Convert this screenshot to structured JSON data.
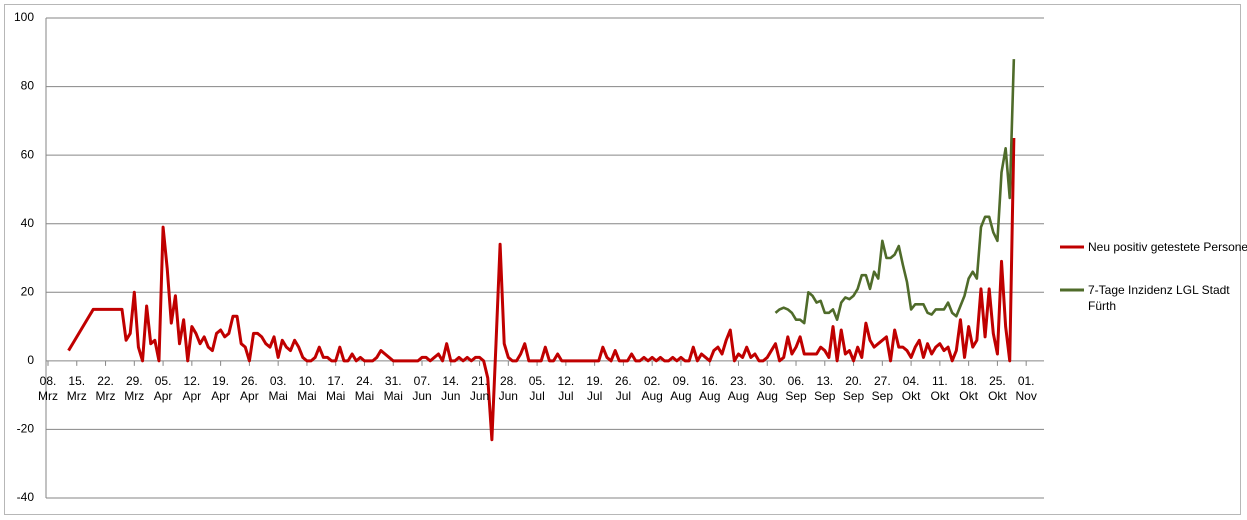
{
  "chart_data": {
    "type": "line",
    "categories": [
      "08. Mrz",
      null,
      null,
      null,
      null,
      null,
      null,
      "15. Mrz",
      null,
      null,
      null,
      null,
      null,
      null,
      "22. Mrz",
      null,
      null,
      null,
      null,
      null,
      null,
      "29. Mrz",
      null,
      null,
      null,
      null,
      null,
      null,
      "05. Apr",
      null,
      null,
      null,
      null,
      null,
      null,
      "12. Apr",
      null,
      null,
      null,
      null,
      null,
      null,
      "19. Apr",
      null,
      null,
      null,
      null,
      null,
      null,
      "26. Apr",
      null,
      null,
      null,
      null,
      null,
      null,
      "03. Mai",
      null,
      null,
      null,
      null,
      null,
      null,
      "10. Mai",
      null,
      null,
      null,
      null,
      null,
      null,
      "17. Mai",
      null,
      null,
      null,
      null,
      null,
      null,
      "24. Mai",
      null,
      null,
      null,
      null,
      null,
      null,
      "31. Mai",
      null,
      null,
      null,
      null,
      null,
      null,
      "07. Jun",
      null,
      null,
      null,
      null,
      null,
      null,
      "14. Jun",
      null,
      null,
      null,
      null,
      null,
      null,
      "21. Jun",
      null,
      null,
      null,
      null,
      null,
      null,
      "28. Jun",
      null,
      null,
      null,
      null,
      null,
      null,
      "05. Jul",
      null,
      null,
      null,
      null,
      null,
      null,
      "12. Jul",
      null,
      null,
      null,
      null,
      null,
      null,
      "19. Jul",
      null,
      null,
      null,
      null,
      null,
      null,
      "26. Jul",
      null,
      null,
      null,
      null,
      null,
      null,
      "02. Aug",
      null,
      null,
      null,
      null,
      null,
      null,
      "09. Aug",
      null,
      null,
      null,
      null,
      null,
      null,
      "16. Aug",
      null,
      null,
      null,
      null,
      null,
      null,
      "23. Aug",
      null,
      null,
      null,
      null,
      null,
      null,
      "30. Aug",
      null,
      null,
      null,
      null,
      null,
      null,
      "06. Sep",
      null,
      null,
      null,
      null,
      null,
      null,
      "13. Sep",
      null,
      null,
      null,
      null,
      null,
      null,
      "20. Sep",
      null,
      null,
      null,
      null,
      null,
      null,
      "27. Sep",
      null,
      null,
      null,
      null,
      null,
      null,
      "04. Okt",
      null,
      null,
      null,
      null,
      null,
      null,
      "11. Okt",
      null,
      null,
      null,
      null,
      null,
      null,
      "18. Okt",
      null,
      null,
      null,
      null,
      null,
      null,
      "25. Okt",
      null,
      null,
      null,
      null,
      null,
      null,
      "01. Nov"
    ],
    "series": [
      {
        "name": "Neu positiv getestete Personen",
        "color": "#c00000",
        "values": [
          null,
          null,
          null,
          null,
          null,
          3,
          5,
          7,
          9,
          11,
          13,
          15,
          15,
          15,
          15,
          15,
          15,
          15,
          15,
          6,
          8,
          20,
          4,
          0,
          16,
          5,
          6,
          0,
          39,
          27,
          11,
          19,
          5,
          12,
          0,
          10,
          8,
          5,
          7,
          4,
          3,
          8,
          9,
          7,
          8,
          13,
          13,
          5,
          4,
          0,
          8,
          8,
          7,
          5,
          4,
          7,
          1,
          6,
          4,
          3,
          6,
          4,
          1,
          0,
          0,
          1,
          4,
          1,
          1,
          0,
          0,
          4,
          0,
          0,
          2,
          0,
          1,
          0,
          0,
          0,
          1,
          3,
          2,
          1,
          0,
          0,
          0,
          0,
          0,
          0,
          0,
          1,
          1,
          0,
          1,
          2,
          0,
          5,
          0,
          0,
          1,
          0,
          1,
          0,
          1,
          1,
          0,
          -5,
          -23,
          5,
          34,
          5,
          1,
          0,
          0,
          2,
          5,
          0,
          0,
          0,
          0,
          4,
          0,
          0,
          2,
          0,
          0,
          0,
          0,
          0,
          0,
          0,
          0,
          0,
          0,
          4,
          1,
          0,
          3,
          0,
          0,
          0,
          2,
          0,
          0,
          1,
          0,
          1,
          0,
          1,
          0,
          0,
          1,
          0,
          1,
          0,
          0,
          4,
          0,
          2,
          1,
          0,
          3,
          4,
          2,
          6,
          9,
          0,
          2,
          1,
          4,
          1,
          2,
          0,
          0,
          1,
          3,
          5,
          0,
          1,
          7,
          2,
          4,
          7,
          2,
          2,
          2,
          2,
          4,
          3,
          1,
          10,
          0,
          9,
          2,
          3,
          0,
          4,
          1,
          11,
          6,
          4,
          5,
          6,
          7,
          0,
          9,
          4,
          4,
          3,
          1,
          4,
          6,
          1,
          5,
          2,
          4,
          5,
          3,
          4,
          0,
          3,
          12,
          1,
          10,
          4,
          6,
          21,
          7,
          21,
          8,
          2,
          29,
          10,
          0,
          65,
          null,
          null,
          null
        ]
      },
      {
        "name": "7-Tage Inzidenz LGL Stadt Fürth",
        "color": "#4f6b2a",
        "values": [
          null,
          null,
          null,
          null,
          null,
          null,
          null,
          null,
          null,
          null,
          null,
          null,
          null,
          null,
          null,
          null,
          null,
          null,
          null,
          null,
          null,
          null,
          null,
          null,
          null,
          null,
          null,
          null,
          null,
          null,
          null,
          null,
          null,
          null,
          null,
          null,
          null,
          null,
          null,
          null,
          null,
          null,
          null,
          null,
          null,
          null,
          null,
          null,
          null,
          null,
          null,
          null,
          null,
          null,
          null,
          null,
          null,
          null,
          null,
          null,
          null,
          null,
          null,
          null,
          null,
          null,
          null,
          null,
          null,
          null,
          null,
          null,
          null,
          null,
          null,
          null,
          null,
          null,
          null,
          null,
          null,
          null,
          null,
          null,
          null,
          null,
          null,
          null,
          null,
          null,
          null,
          null,
          null,
          null,
          null,
          null,
          null,
          null,
          null,
          null,
          null,
          null,
          null,
          null,
          null,
          null,
          null,
          null,
          null,
          null,
          null,
          null,
          null,
          null,
          null,
          null,
          null,
          null,
          null,
          null,
          null,
          null,
          null,
          null,
          null,
          null,
          null,
          null,
          null,
          null,
          null,
          null,
          null,
          null,
          null,
          null,
          null,
          null,
          null,
          null,
          null,
          null,
          null,
          null,
          null,
          null,
          null,
          null,
          null,
          null,
          null,
          null,
          null,
          null,
          null,
          null,
          null,
          null,
          null,
          null,
          null,
          null,
          null,
          null,
          null,
          null,
          null,
          null,
          null,
          null,
          null,
          null,
          null,
          null,
          null,
          null,
          null,
          14,
          15,
          15.5,
          15,
          14,
          12,
          12,
          11,
          20,
          19,
          17,
          17.5,
          14,
          14,
          15,
          12,
          17,
          18.5,
          18,
          19,
          21,
          25,
          25,
          21,
          26,
          24,
          35,
          30,
          30,
          31,
          33.5,
          28,
          23,
          15,
          16.5,
          16.5,
          16.5,
          14,
          13.5,
          15,
          15,
          15,
          17,
          14,
          13,
          16,
          19,
          24,
          26,
          24,
          39,
          42,
          42,
          37.5,
          35,
          55,
          62,
          47.5,
          88,
          null,
          null,
          null
        ]
      }
    ],
    "ylim": [
      -40,
      100
    ],
    "yticks": [
      -40,
      -20,
      0,
      20,
      40,
      60,
      80,
      100
    ],
    "grid": true,
    "legend": "right"
  }
}
